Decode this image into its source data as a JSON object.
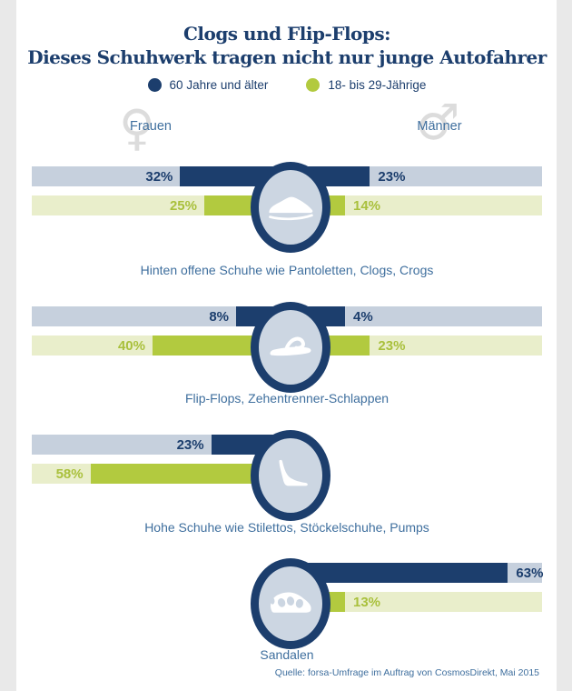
{
  "title": {
    "line1": "Clogs und Flip-Flops:",
    "line2": "Dieses Schuhwerk tragen nicht nur junge Autofahrer"
  },
  "legend": {
    "items": [
      {
        "label": "60 Jahre und älter",
        "color": "#1c3e6d"
      },
      {
        "label": "18- bis 29-Jährige",
        "color": "#b2ca3f"
      }
    ]
  },
  "columns": {
    "left": "Frauen",
    "right": "Männer"
  },
  "source": "Quelle: forsa-Umfrage im Auftrag von CosmosDirekt, Mai 2015",
  "colors": {
    "navy": "#1c3e6d",
    "green": "#b2ca3f",
    "green-text": "#a9c03c",
    "track-navy": "#c6d0dd",
    "track-green": "#e9eecb",
    "caption": "#3f6f9e",
    "ellipse-fill": "#ccd6e2",
    "symbol-gray": "#dcdcdc",
    "edge-gray": "#e9e9e9"
  },
  "chart_data": {
    "type": "bar",
    "unit": "%",
    "title": "Clogs und Flip-Flops: Dieses Schuhwerk tragen nicht nur junge Autofahrer",
    "series": [
      {
        "name": "60 Jahre und älter",
        "color": "#1c3e6d"
      },
      {
        "name": "18- bis 29-Jährige",
        "color": "#b2ca3f"
      }
    ],
    "groups": [
      "Frauen",
      "Männer"
    ],
    "legend_position": "top",
    "rows": [
      {
        "caption": "Hinten offene Schuhe wie Pantoletten, Clogs, Crogs",
        "icon": "clog-icon",
        "sides": "both",
        "frauen": {
          "60 Jahre und älter": 32,
          "18- bis 29-Jährige": 25
        },
        "maenner": {
          "60 Jahre und älter": 23,
          "18- bis 29-Jährige": 14
        }
      },
      {
        "caption": "Flip-Flops, Zehentrenner-Schlappen",
        "icon": "flip-flop-icon",
        "sides": "both",
        "frauen": {
          "60 Jahre und älter": 8,
          "18- bis 29-Jährige": 40
        },
        "maenner": {
          "60 Jahre und älter": 4,
          "18- bis 29-Jährige": 23
        }
      },
      {
        "caption": "Hohe Schuhe wie Stilettos, Stöckelschuhe, Pumps",
        "icon": "high-heel-icon",
        "sides": "left",
        "frauen": {
          "60 Jahre und älter": 23,
          "18- bis 29-Jährige": 58
        }
      },
      {
        "caption": "Sandalen",
        "icon": "sandal-icon",
        "sides": "right",
        "maenner": {
          "60 Jahre und älter": 63,
          "18- bis 29-Jährige": 13
        }
      }
    ]
  }
}
